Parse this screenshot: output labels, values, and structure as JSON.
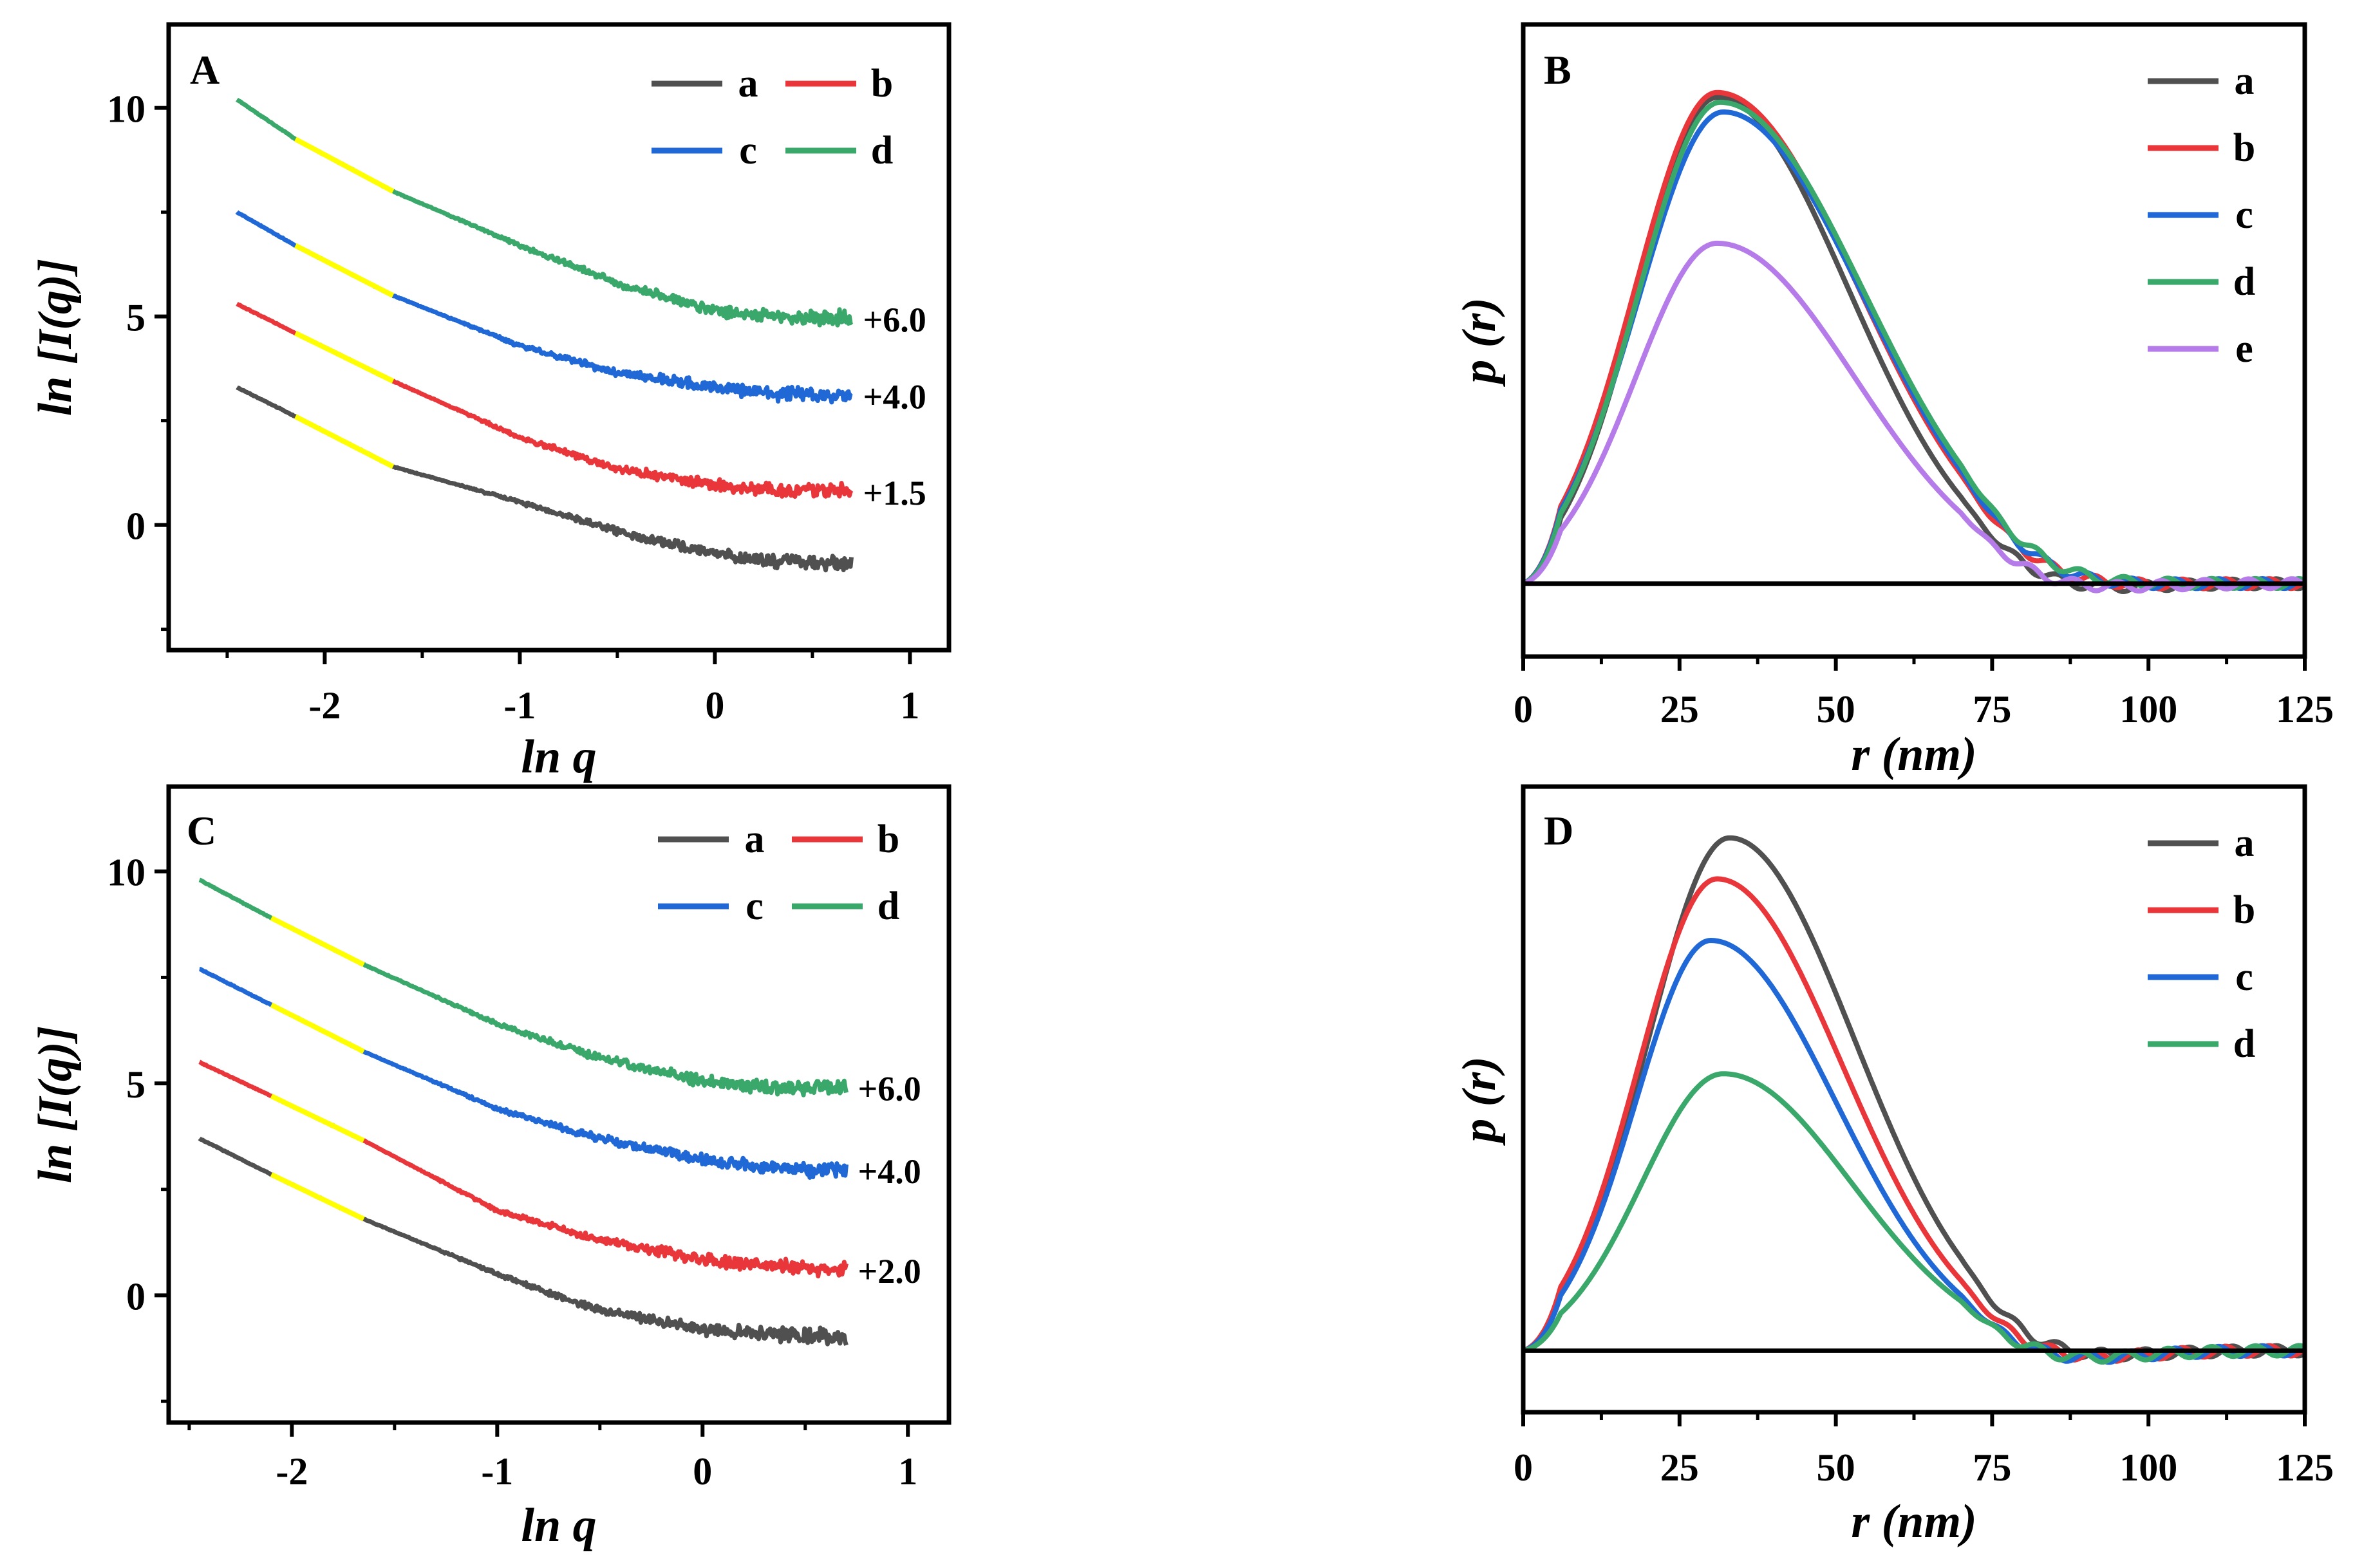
{
  "chart_data": [
    {
      "panel": "A",
      "type": "line",
      "xlabel": "ln q",
      "ylabel": "ln [I(q)]",
      "xlim": [
        -2.8,
        1.2
      ],
      "ylim": [
        -3,
        12
      ],
      "xticks": [
        -2,
        -1,
        0,
        1
      ],
      "xtick_labels": [
        "-2",
        "-1",
        "0",
        "1"
      ],
      "yticks": [
        0,
        5,
        10
      ],
      "ytick_labels": [
        "0",
        "5",
        "10"
      ],
      "legend_position": "top-right",
      "legend_columns": 2,
      "guinier_highlight": {
        "color": "#ffff00",
        "x_range": [
          -2.15,
          -1.65
        ]
      },
      "series": [
        {
          "name": "a",
          "color": "#505050",
          "offset_label": "",
          "x": [
            -2.45,
            -2.15,
            -1.65,
            -1.0,
            -0.5,
            0.0,
            0.3,
            0.7
          ],
          "y": [
            3.3,
            2.6,
            1.4,
            0.55,
            -0.15,
            -0.7,
            -0.85,
            -0.95
          ]
        },
        {
          "name": "b",
          "color": "#e8363a",
          "offset_label": "+1.5",
          "x": [
            -2.45,
            -2.15,
            -1.65,
            -1.0,
            -0.5,
            0.0,
            0.3,
            0.7
          ],
          "y": [
            5.3,
            4.6,
            3.45,
            2.1,
            1.35,
            0.95,
            0.85,
            0.8
          ]
        },
        {
          "name": "c",
          "color": "#2068d6",
          "offset_label": "+4.0",
          "x": [
            -2.45,
            -2.15,
            -1.65,
            -1.0,
            -0.5,
            0.0,
            0.3,
            0.7
          ],
          "y": [
            7.5,
            6.7,
            5.5,
            4.3,
            3.65,
            3.3,
            3.15,
            3.1
          ]
        },
        {
          "name": "d",
          "color": "#3aa86a",
          "offset_label": "+6.0",
          "x": [
            -2.45,
            -2.15,
            -1.65,
            -1.0,
            -0.5,
            0.0,
            0.3,
            0.7
          ],
          "y": [
            10.2,
            9.25,
            8.0,
            6.7,
            5.8,
            5.15,
            5.0,
            4.95
          ]
        }
      ]
    },
    {
      "panel": "B",
      "type": "line",
      "xlabel": "r (nm)",
      "ylabel": "p (r)",
      "xlim": [
        0,
        125
      ],
      "ylim": [
        -0.15,
        1.15
      ],
      "xticks": [
        0,
        25,
        50,
        75,
        100,
        125
      ],
      "xtick_labels": [
        "0",
        "25",
        "50",
        "75",
        "100",
        "125"
      ],
      "baseline": 0,
      "legend_position": "top-right",
      "legend_columns": 1,
      "series": [
        {
          "name": "a",
          "color": "#505050",
          "peak_r": 31,
          "peak": 1.0,
          "width_left": 12.5,
          "width_right": 21
        },
        {
          "name": "b",
          "color": "#e8363a",
          "peak_r": 31,
          "peak": 1.01,
          "width_left": 13,
          "width_right": 22.5
        },
        {
          "name": "c",
          "color": "#2068d6",
          "peak_r": 32,
          "peak": 0.97,
          "width_left": 13.5,
          "width_right": 22.5
        },
        {
          "name": "d",
          "color": "#3aa86a",
          "peak_r": 31.5,
          "peak": 0.99,
          "width_left": 13,
          "width_right": 23
        },
        {
          "name": "e",
          "color": "#b57be8",
          "peak_r": 31,
          "peak": 0.7,
          "width_left": 13,
          "width_right": 22
        }
      ]
    },
    {
      "panel": "C",
      "type": "line",
      "xlabel": "ln q",
      "ylabel": "ln [I(q)]",
      "xlim": [
        -2.6,
        1.2
      ],
      "ylim": [
        -3,
        12
      ],
      "xticks": [
        -2,
        -1,
        0,
        1
      ],
      "xtick_labels": [
        "-2",
        "-1",
        "0",
        "1"
      ],
      "yticks": [
        0,
        5,
        10
      ],
      "ytick_labels": [
        "0",
        "5",
        "10"
      ],
      "legend_position": "top-right",
      "legend_columns": 2,
      "guinier_highlight": {
        "color": "#ffff00",
        "x_range": [
          -2.1,
          -1.65
        ]
      },
      "series": [
        {
          "name": "a",
          "color": "#505050",
          "offset_label": "",
          "x": [
            -2.45,
            -2.1,
            -1.65,
            -1.0,
            -0.5,
            0.0,
            0.3,
            0.7
          ],
          "y": [
            3.7,
            2.85,
            1.8,
            0.5,
            -0.35,
            -0.8,
            -0.9,
            -1.0
          ]
        },
        {
          "name": "b",
          "color": "#e8363a",
          "offset_label": "+2.0",
          "x": [
            -2.45,
            -2.1,
            -1.65,
            -1.0,
            -0.5,
            0.0,
            0.3,
            0.7
          ],
          "y": [
            5.5,
            4.7,
            3.65,
            2.0,
            1.3,
            0.85,
            0.7,
            0.6
          ]
        },
        {
          "name": "c",
          "color": "#2068d6",
          "offset_label": "+4.0",
          "x": [
            -2.45,
            -2.1,
            -1.65,
            -1.0,
            -0.5,
            0.0,
            0.3,
            0.7
          ],
          "y": [
            7.7,
            6.85,
            5.75,
            4.4,
            3.7,
            3.2,
            3.0,
            2.95
          ]
        },
        {
          "name": "d",
          "color": "#3aa86a",
          "offset_label": "+6.0",
          "x": [
            -2.45,
            -2.1,
            -1.65,
            -1.0,
            -0.5,
            0.0,
            0.3,
            0.7
          ],
          "y": [
            9.8,
            8.9,
            7.8,
            6.4,
            5.6,
            5.05,
            4.9,
            4.9
          ]
        }
      ]
    },
    {
      "panel": "D",
      "type": "line",
      "xlabel": "r (nm)",
      "ylabel": "p (r)",
      "xlim": [
        0,
        125
      ],
      "ylim": [
        -0.12,
        1.1
      ],
      "xticks": [
        0,
        25,
        50,
        75,
        100,
        125
      ],
      "xtick_labels": [
        "0",
        "25",
        "50",
        "75",
        "100",
        "125"
      ],
      "baseline": 0,
      "legend_position": "top-right",
      "legend_columns": 1,
      "series": [
        {
          "name": "a",
          "color": "#505050",
          "peak_r": 33,
          "peak": 1.0,
          "width_left": 13,
          "width_right": 20
        },
        {
          "name": "b",
          "color": "#e8363a",
          "peak_r": 31,
          "peak": 0.92,
          "width_left": 12.5,
          "width_right": 20
        },
        {
          "name": "c",
          "color": "#2068d6",
          "peak_r": 30,
          "peak": 0.8,
          "width_left": 12,
          "width_right": 20
        },
        {
          "name": "d",
          "color": "#3aa86a",
          "peak_r": 32,
          "peak": 0.54,
          "width_left": 13,
          "width_right": 20.5
        }
      ]
    }
  ]
}
